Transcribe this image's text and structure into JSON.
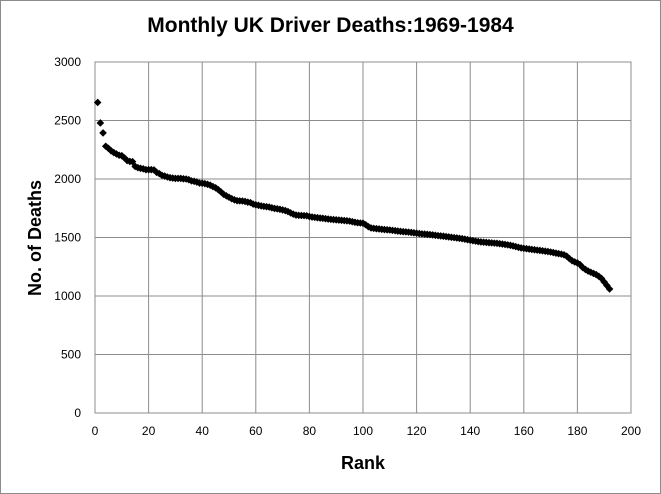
{
  "chart_data": {
    "type": "scatter",
    "title": "Monthly UK Driver Deaths:1969-1984",
    "xlabel": "Rank",
    "ylabel": "No. of Deaths",
    "xlim": [
      0,
      200
    ],
    "ylim": [
      0,
      3000
    ],
    "x_ticks": [
      "0",
      "20",
      "40",
      "60",
      "80",
      "100",
      "120",
      "140",
      "160",
      "180",
      "200"
    ],
    "y_ticks": [
      "0",
      "500",
      "1000",
      "1500",
      "2000",
      "2500",
      "3000"
    ],
    "grid": true,
    "legend": "none",
    "marker_color": "#000000",
    "series": [
      {
        "points": [
          [
            1,
            2654
          ],
          [
            2,
            2479
          ],
          [
            3,
            2394
          ],
          [
            4,
            2280
          ],
          [
            5,
            2262
          ],
          [
            6,
            2241
          ],
          [
            7,
            2226
          ],
          [
            8,
            2214
          ],
          [
            9,
            2203
          ],
          [
            10,
            2199
          ],
          [
            11,
            2180
          ],
          [
            12,
            2158
          ],
          [
            13,
            2150
          ],
          [
            14,
            2148
          ],
          [
            15,
            2107
          ],
          [
            16,
            2097
          ],
          [
            17,
            2091
          ],
          [
            18,
            2087
          ],
          [
            19,
            2080
          ],
          [
            20,
            2080
          ],
          [
            21,
            2080
          ],
          [
            22,
            2078
          ],
          [
            23,
            2057
          ],
          [
            24,
            2046
          ],
          [
            25,
            2031
          ],
          [
            26,
            2025
          ],
          [
            27,
            2017
          ],
          [
            28,
            2011
          ],
          [
            29,
            2008
          ],
          [
            30,
            2005
          ],
          [
            31,
            2005
          ],
          [
            32,
            2005
          ],
          [
            33,
            2002
          ],
          [
            34,
            2000
          ],
          [
            35,
            1994
          ],
          [
            36,
            1984
          ],
          [
            37,
            1980
          ],
          [
            38,
            1974
          ],
          [
            39,
            1965
          ],
          [
            40,
            1964
          ],
          [
            41,
            1960
          ],
          [
            42,
            1955
          ],
          [
            43,
            1947
          ],
          [
            44,
            1935
          ],
          [
            45,
            1925
          ],
          [
            46,
            1909
          ],
          [
            47,
            1890
          ],
          [
            48,
            1869
          ],
          [
            49,
            1856
          ],
          [
            50,
            1844
          ],
          [
            51,
            1832
          ],
          [
            52,
            1822
          ],
          [
            53,
            1815
          ],
          [
            54,
            1813
          ],
          [
            55,
            1812
          ],
          [
            56,
            1808
          ],
          [
            57,
            1802
          ],
          [
            58,
            1798
          ],
          [
            59,
            1786
          ],
          [
            60,
            1779
          ],
          [
            61,
            1775
          ],
          [
            62,
            1770
          ],
          [
            63,
            1766
          ],
          [
            64,
            1763
          ],
          [
            65,
            1760
          ],
          [
            66,
            1754
          ],
          [
            67,
            1748
          ],
          [
            68,
            1745
          ],
          [
            69,
            1741
          ],
          [
            70,
            1736
          ],
          [
            71,
            1730
          ],
          [
            72,
            1722
          ],
          [
            73,
            1710
          ],
          [
            74,
            1699
          ],
          [
            75,
            1692
          ],
          [
            76,
            1689
          ],
          [
            77,
            1688
          ],
          [
            78,
            1687
          ],
          [
            79,
            1686
          ],
          [
            80,
            1679
          ],
          [
            81,
            1675
          ],
          [
            82,
            1672
          ],
          [
            83,
            1669
          ],
          [
            84,
            1666
          ],
          [
            85,
            1664
          ],
          [
            86,
            1661
          ],
          [
            87,
            1658
          ],
          [
            88,
            1655
          ],
          [
            89,
            1653
          ],
          [
            90,
            1651
          ],
          [
            91,
            1649
          ],
          [
            92,
            1647
          ],
          [
            93,
            1645
          ],
          [
            94,
            1643
          ],
          [
            95,
            1640
          ],
          [
            96,
            1635
          ],
          [
            97,
            1630
          ],
          [
            98,
            1626
          ],
          [
            99,
            1624
          ],
          [
            100,
            1622
          ],
          [
            101,
            1609
          ],
          [
            102,
            1592
          ],
          [
            103,
            1582
          ],
          [
            104,
            1578
          ],
          [
            105,
            1575
          ],
          [
            106,
            1573
          ],
          [
            107,
            1570
          ],
          [
            108,
            1568
          ],
          [
            109,
            1566
          ],
          [
            110,
            1564
          ],
          [
            111,
            1561
          ],
          [
            112,
            1558
          ],
          [
            113,
            1555
          ],
          [
            114,
            1552
          ],
          [
            115,
            1550
          ],
          [
            116,
            1548
          ],
          [
            117,
            1546
          ],
          [
            118,
            1543
          ],
          [
            119,
            1540
          ],
          [
            120,
            1537
          ],
          [
            121,
            1534
          ],
          [
            122,
            1531
          ],
          [
            123,
            1529
          ],
          [
            124,
            1527
          ],
          [
            125,
            1525
          ],
          [
            126,
            1522
          ],
          [
            127,
            1519
          ],
          [
            128,
            1516
          ],
          [
            129,
            1513
          ],
          [
            130,
            1511
          ],
          [
            131,
            1508
          ],
          [
            132,
            1505
          ],
          [
            133,
            1502
          ],
          [
            134,
            1499
          ],
          [
            135,
            1496
          ],
          [
            136,
            1493
          ],
          [
            137,
            1490
          ],
          [
            138,
            1486
          ],
          [
            139,
            1481
          ],
          [
            140,
            1477
          ],
          [
            141,
            1473
          ],
          [
            142,
            1469
          ],
          [
            143,
            1465
          ],
          [
            144,
            1462
          ],
          [
            145,
            1460
          ],
          [
            146,
            1458
          ],
          [
            147,
            1456
          ],
          [
            148,
            1454
          ],
          [
            149,
            1452
          ],
          [
            150,
            1450
          ],
          [
            151,
            1447
          ],
          [
            152,
            1444
          ],
          [
            153,
            1441
          ],
          [
            154,
            1437
          ],
          [
            155,
            1433
          ],
          [
            156,
            1428
          ],
          [
            157,
            1422
          ],
          [
            158,
            1416
          ],
          [
            159,
            1411
          ],
          [
            160,
            1407
          ],
          [
            161,
            1404
          ],
          [
            162,
            1401
          ],
          [
            163,
            1398
          ],
          [
            164,
            1395
          ],
          [
            165,
            1392
          ],
          [
            166,
            1389
          ],
          [
            167,
            1386
          ],
          [
            168,
            1383
          ],
          [
            169,
            1380
          ],
          [
            170,
            1376
          ],
          [
            171,
            1371
          ],
          [
            172,
            1366
          ],
          [
            173,
            1362
          ],
          [
            174,
            1358
          ],
          [
            175,
            1352
          ],
          [
            176,
            1340
          ],
          [
            177,
            1320
          ],
          [
            178,
            1302
          ],
          [
            179,
            1291
          ],
          [
            180,
            1283
          ],
          [
            181,
            1268
          ],
          [
            182,
            1243
          ],
          [
            183,
            1227
          ],
          [
            184,
            1213
          ],
          [
            185,
            1203
          ],
          [
            186,
            1193
          ],
          [
            187,
            1183
          ],
          [
            188,
            1168
          ],
          [
            189,
            1150
          ],
          [
            190,
            1120
          ],
          [
            191,
            1090
          ],
          [
            192,
            1060
          ]
        ]
      }
    ]
  }
}
